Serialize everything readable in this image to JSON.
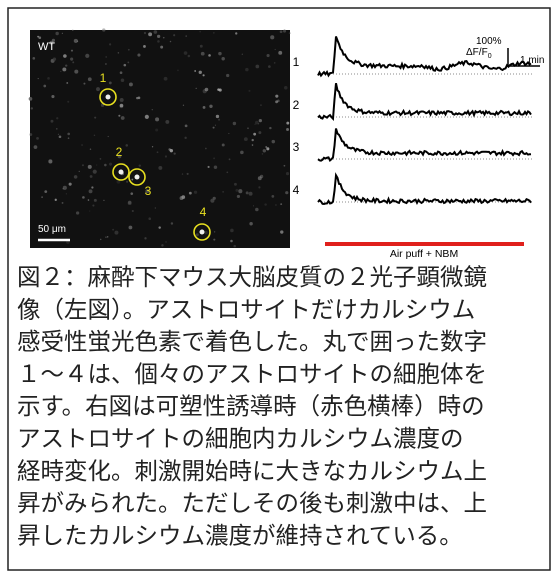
{
  "figure": {
    "image": {
      "genotype": "WT",
      "scale_bar": "50 μm",
      "cells": [
        "1",
        "2",
        "3",
        "4"
      ]
    },
    "traces": {
      "labels": [
        "1",
        "2",
        "3",
        "4"
      ],
      "amplitude": "100%",
      "amplitude_unit": "ΔF/F",
      "amplitude_unit_sub": "0",
      "time": "1 min",
      "stimulus": "Air puff + NBM"
    }
  },
  "caption": {
    "lines": [
      "図２：麻酔下マウス大脳皮質の２光子顕微鏡",
      "像（左図）。アストロサイトだけカルシウム",
      "感受性蛍光色素で着色した。丸で囲った数字",
      "１～４は、個々のアストロサイトの細胞体を",
      "示す。右図は可塑性誘導時（赤色横棒）時の",
      "アストロサイトの細胞内カルシウム濃度の",
      "経時変化。刺激開始時に大きなカルシウム上",
      "昇がみられた。ただしその後も刺激中は、上",
      "昇したカルシウム濃度が維持されている。"
    ]
  }
}
